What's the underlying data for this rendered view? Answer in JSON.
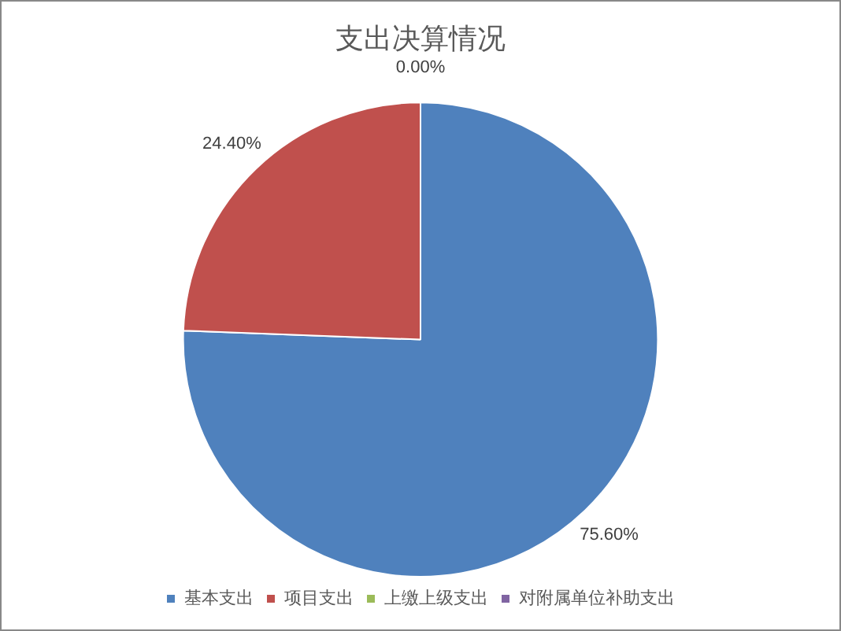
{
  "chart_data": {
    "type": "pie",
    "title": "支出决算情况",
    "categories": [
      "基本支出",
      "项目支出",
      "上缴上级支出",
      "对附属单位补助支出"
    ],
    "values": [
      75.6,
      24.4,
      0,
      0
    ],
    "colors": [
      "#4f81bd",
      "#c0504d",
      "#9bbb59",
      "#8064a2"
    ],
    "value_labels": [
      "75.60%",
      "24.40%",
      "0.00%",
      null
    ],
    "legend": "bottom"
  }
}
